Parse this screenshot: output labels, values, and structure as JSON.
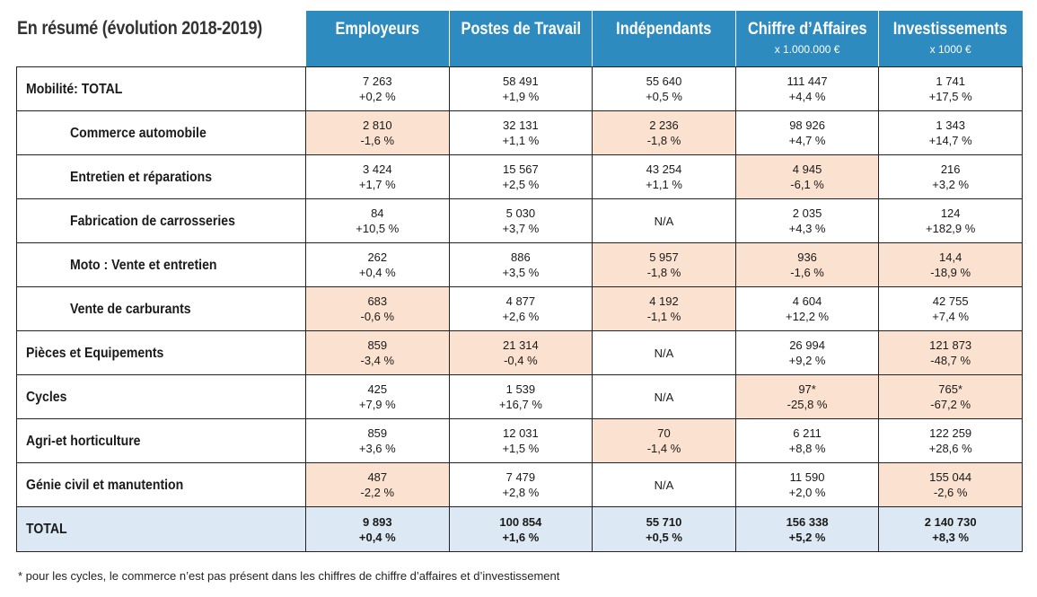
{
  "title": "En résumé (évolution 2018-2019)",
  "columns": [
    {
      "label": "Employeurs",
      "sub": ""
    },
    {
      "label": "Postes de Travail",
      "sub": ""
    },
    {
      "label": "Indépendants",
      "sub": ""
    },
    {
      "label": "Chiffre d’Affaires",
      "sub": "x 1.000.000 €"
    },
    {
      "label": "Investissements",
      "sub": "x 1000 €"
    }
  ],
  "rows": [
    {
      "label": "Mobilité: TOTAL",
      "indent": false,
      "total": false,
      "cells": [
        {
          "value": "7 263",
          "pct": "+0,2 %",
          "highlight": false
        },
        {
          "value": "58 491",
          "pct": "+1,9 %",
          "highlight": false
        },
        {
          "value": "55 640",
          "pct": "+0,5 %",
          "highlight": false
        },
        {
          "value": "111 447",
          "pct": "+4,4 %",
          "highlight": false
        },
        {
          "value": "1 741",
          "pct": "+17,5 %",
          "highlight": false
        }
      ]
    },
    {
      "label": "Commerce automobile",
      "indent": true,
      "total": false,
      "cells": [
        {
          "value": "2 810",
          "pct": "-1,6 %",
          "highlight": true
        },
        {
          "value": "32 131",
          "pct": "+1,1 %",
          "highlight": false
        },
        {
          "value": "2 236",
          "pct": "-1,8 %",
          "highlight": true
        },
        {
          "value": "98 926",
          "pct": "+4,7 %",
          "highlight": false
        },
        {
          "value": "1 343",
          "pct": "+14,7 %",
          "highlight": false
        }
      ]
    },
    {
      "label": "Entretien et réparations",
      "indent": true,
      "total": false,
      "cells": [
        {
          "value": "3 424",
          "pct": "+1,7 %",
          "highlight": false
        },
        {
          "value": "15 567",
          "pct": "+2,5 %",
          "highlight": false
        },
        {
          "value": "43 254",
          "pct": "+1,1 %",
          "highlight": false
        },
        {
          "value": "4 945",
          "pct": "-6,1 %",
          "highlight": true
        },
        {
          "value": "216",
          "pct": "+3,2 %",
          "highlight": false
        }
      ]
    },
    {
      "label": "Fabrication de carrosseries",
      "indent": true,
      "total": false,
      "cells": [
        {
          "value": "84",
          "pct": "+10,5 %",
          "highlight": false
        },
        {
          "value": "5 030",
          "pct": "+3,7 %",
          "highlight": false
        },
        {
          "value": "N/A",
          "pct": "",
          "highlight": false
        },
        {
          "value": "2 035",
          "pct": "+4,3 %",
          "highlight": false
        },
        {
          "value": "124",
          "pct": "+182,9 %",
          "highlight": false
        }
      ]
    },
    {
      "label": "Moto : Vente et entretien",
      "indent": true,
      "total": false,
      "cells": [
        {
          "value": "262",
          "pct": "+0,4 %",
          "highlight": false
        },
        {
          "value": "886",
          "pct": "+3,5 %",
          "highlight": false
        },
        {
          "value": "5 957",
          "pct": "-1,8 %",
          "highlight": true
        },
        {
          "value": "936",
          "pct": "-1,6 %",
          "highlight": true
        },
        {
          "value": "14,4",
          "pct": "-18,9 %",
          "highlight": true
        }
      ]
    },
    {
      "label": "Vente de carburants",
      "indent": true,
      "total": false,
      "cells": [
        {
          "value": "683",
          "pct": "-0,6 %",
          "highlight": true
        },
        {
          "value": "4 877",
          "pct": "+2,6 %",
          "highlight": false
        },
        {
          "value": "4 192",
          "pct": "-1,1 %",
          "highlight": true
        },
        {
          "value": "4 604",
          "pct": "+12,2 %",
          "highlight": false
        },
        {
          "value": "42 755",
          "pct": "+7,4 %",
          "highlight": false
        }
      ]
    },
    {
      "label": "Pièces et Equipements",
      "indent": false,
      "total": false,
      "cells": [
        {
          "value": "859",
          "pct": "-3,4 %",
          "highlight": true
        },
        {
          "value": "21 314",
          "pct": "-0,4 %",
          "highlight": true
        },
        {
          "value": "N/A",
          "pct": "",
          "highlight": false
        },
        {
          "value": "26 994",
          "pct": "+9,2 %",
          "highlight": false
        },
        {
          "value": "121 873",
          "pct": "-48,7 %",
          "highlight": true
        }
      ]
    },
    {
      "label": "Cycles",
      "indent": false,
      "total": false,
      "cells": [
        {
          "value": "425",
          "pct": "+7,9 %",
          "highlight": false
        },
        {
          "value": "1 539",
          "pct": "+16,7 %",
          "highlight": false
        },
        {
          "value": "N/A",
          "pct": "",
          "highlight": false
        },
        {
          "value": "97*",
          "pct": "-25,8 %",
          "highlight": true
        },
        {
          "value": "765*",
          "pct": "-67,2 %",
          "highlight": true
        }
      ]
    },
    {
      "label": "Agri-et horticulture",
      "indent": false,
      "total": false,
      "cells": [
        {
          "value": "859",
          "pct": "+3,6 %",
          "highlight": false
        },
        {
          "value": "12 031",
          "pct": "+1,5 %",
          "highlight": false
        },
        {
          "value": "70",
          "pct": "-1,4 %",
          "highlight": true
        },
        {
          "value": "6 211",
          "pct": "+8,8 %",
          "highlight": false
        },
        {
          "value": "122 259",
          "pct": "+28,6 %",
          "highlight": false
        }
      ]
    },
    {
      "label": "Génie civil et manutention",
      "indent": false,
      "total": false,
      "cells": [
        {
          "value": "487",
          "pct": "-2,2 %",
          "highlight": true
        },
        {
          "value": "7 479",
          "pct": "+2,8 %",
          "highlight": false
        },
        {
          "value": "N/A",
          "pct": "",
          "highlight": false
        },
        {
          "value": "11 590",
          "pct": "+2,0 %",
          "highlight": false
        },
        {
          "value": "155 044",
          "pct": "-2,6 %",
          "highlight": true
        }
      ]
    },
    {
      "label": "TOTAL",
      "indent": false,
      "total": true,
      "cells": [
        {
          "value": "9 893",
          "pct": "+0,4 %",
          "highlight": false
        },
        {
          "value": "100 854",
          "pct": "+1,6 %",
          "highlight": false
        },
        {
          "value": "55 710",
          "pct": "+0,5 %",
          "highlight": false
        },
        {
          "value": "156 338",
          "pct": "+5,2 %",
          "highlight": false
        },
        {
          "value": "2 140 730",
          "pct": "+8,3 %",
          "highlight": false
        }
      ]
    }
  ],
  "colors": {
    "header": "#2e8bbf",
    "highlight": "#fbe1cf",
    "total_row": "#dce8f3"
  },
  "footnote": "* pour les cycles, le commerce n’est pas présent dans les chiffres de chiffre d’affaires et d’investissement"
}
